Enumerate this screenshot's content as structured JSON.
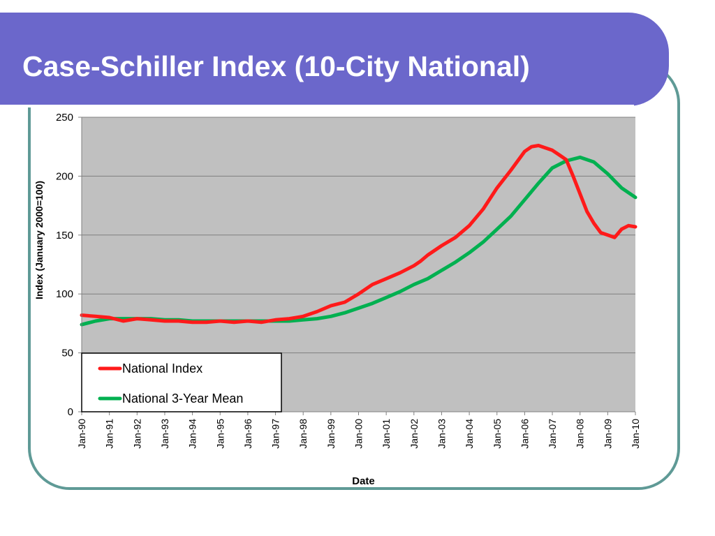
{
  "slide": {
    "title": "Case-Schiller Index (10-City National)"
  },
  "chart_data": {
    "type": "line",
    "title": "",
    "xlabel": "Date",
    "ylabel": "Index (January 2000=100)",
    "x_tick_labels": [
      "Jan-90",
      "Jan-91",
      "Jan-92",
      "Jan-93",
      "Jan-94",
      "Jan-95",
      "Jan-96",
      "Jan-97",
      "Jan-98",
      "Jan-99",
      "Jan-00",
      "Jan-01",
      "Jan-02",
      "Jan-03",
      "Jan-04",
      "Jan-05",
      "Jan-06",
      "Jan-07",
      "Jan-08",
      "Jan-09",
      "Jan-10"
    ],
    "y_ticks": [
      0,
      50,
      100,
      150,
      200,
      250
    ],
    "ylim": [
      0,
      250
    ],
    "xlim": [
      1990.0,
      2010.0
    ],
    "grid": "horizontal",
    "plot_background": "#c0c0c0",
    "legend_position": "bottom-left",
    "series": [
      {
        "name": "National Index",
        "color": "#ff1a1a",
        "x": [
          1990.0,
          1990.5,
          1991.0,
          1991.5,
          1992.0,
          1992.5,
          1993.0,
          1993.5,
          1994.0,
          1994.5,
          1995.0,
          1995.5,
          1996.0,
          1996.5,
          1997.0,
          1997.5,
          1998.0,
          1998.5,
          1999.0,
          1999.5,
          2000.0,
          2000.5,
          2001.0,
          2001.5,
          2002.0,
          2002.25,
          2002.5,
          2003.0,
          2003.5,
          2004.0,
          2004.5,
          2005.0,
          2005.5,
          2006.0,
          2006.25,
          2006.5,
          2007.0,
          2007.25,
          2007.5,
          2007.75,
          2008.0,
          2008.25,
          2008.5,
          2008.75,
          2009.0,
          2009.25,
          2009.5,
          2009.75,
          2010.0
        ],
        "values": [
          82,
          81,
          80,
          77,
          79,
          78,
          77,
          77,
          76,
          76,
          77,
          76,
          77,
          76,
          78,
          79,
          81,
          85,
          90,
          93,
          100,
          108,
          113,
          118,
          124,
          128,
          133,
          141,
          148,
          158,
          172,
          190,
          205,
          221,
          225,
          226,
          222,
          218,
          214,
          200,
          185,
          170,
          160,
          152,
          150,
          148,
          155,
          158,
          157
        ]
      },
      {
        "name": "National 3-Year Mean",
        "color": "#00b050",
        "x": [
          1990.0,
          1990.5,
          1991.0,
          1991.5,
          1992.0,
          1992.5,
          1993.0,
          1993.5,
          1994.0,
          1994.5,
          1995.0,
          1995.5,
          1996.0,
          1996.5,
          1997.0,
          1997.5,
          1998.0,
          1998.5,
          1999.0,
          1999.5,
          2000.0,
          2000.5,
          2001.0,
          2001.5,
          2002.0,
          2002.5,
          2003.0,
          2003.5,
          2004.0,
          2004.5,
          2005.0,
          2005.5,
          2006.0,
          2006.5,
          2007.0,
          2007.5,
          2008.0,
          2008.25,
          2008.5,
          2008.75,
          2009.0,
          2009.25,
          2009.5,
          2010.0
        ],
        "values": [
          74,
          77,
          79,
          79,
          79,
          79,
          78,
          78,
          77,
          77,
          77,
          77,
          77,
          77,
          77,
          77,
          78,
          79,
          81,
          84,
          88,
          92,
          97,
          102,
          108,
          113,
          120,
          127,
          135,
          144,
          155,
          166,
          180,
          194,
          207,
          213,
          216,
          214,
          212,
          207,
          202,
          196,
          190,
          182
        ]
      }
    ]
  }
}
